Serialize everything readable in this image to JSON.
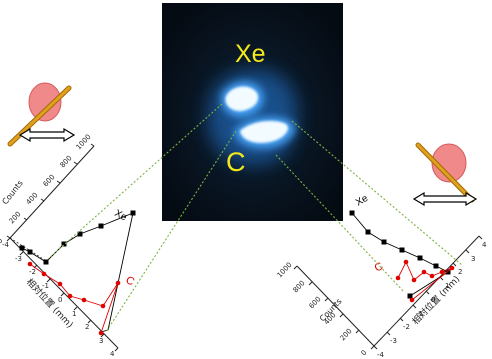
{
  "image_panel": {
    "label_xe": "Xe",
    "label_c": "C",
    "colors": {
      "background": "#07101c",
      "glow": "#4aa8ff",
      "spot_core": "#f2fbff",
      "label": "#f5e81a"
    }
  },
  "plot_left": {
    "counts_label": "Counts",
    "position_label": "相対位置 (mm)",
    "count_ticks": [
      "0",
      "200",
      "400",
      "600",
      "800",
      "1000"
    ],
    "position_ticks": [
      "-4",
      "-3",
      "-2",
      "-1",
      "0",
      "1",
      "2",
      "3",
      "4"
    ],
    "series": [
      {
        "name": "Xe",
        "color": "#000000"
      },
      {
        "name": "C",
        "color": "#e00000"
      }
    ]
  },
  "plot_right": {
    "counts_label": "Counts",
    "position_label": "相対位置 (mm)",
    "count_ticks": [
      "0",
      "200",
      "400",
      "600",
      "800",
      "1000"
    ],
    "position_ticks": [
      "-4",
      "-3",
      "-2",
      "-1",
      "0",
      "1",
      "2",
      "3",
      "4"
    ],
    "series": [
      {
        "name": "Xe",
        "color": "#000000"
      },
      {
        "name": "C",
        "color": "#e00000"
      }
    ]
  },
  "icons": {
    "left": {
      "target": "red-disc-icon",
      "rod": "orange-rod-icon",
      "arrow": "double-arrow-icon"
    },
    "right": {
      "target": "red-disc-icon",
      "rod": "orange-rod-icon",
      "arrow": "double-arrow-icon"
    }
  },
  "colors": {
    "connector": "#7cb342",
    "target_fill": "#f08a8a",
    "target_stroke": "#d65a5a",
    "rod": "#e0a020",
    "rod_stroke": "#a36a00",
    "axis": "#222222",
    "xe_series": "#000000",
    "c_series": "#e00000"
  }
}
